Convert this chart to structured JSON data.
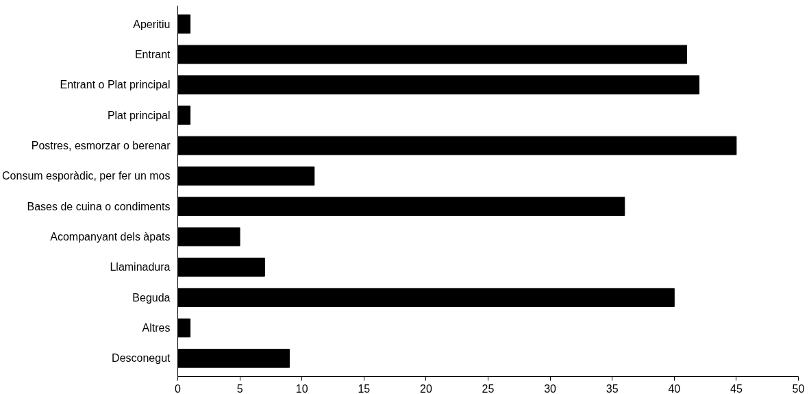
{
  "chart_data": {
    "type": "bar",
    "orientation": "horizontal",
    "categories": [
      "Aperitiu",
      "Entrant",
      "Entrant o Plat principal",
      "Plat principal",
      "Postres, esmorzar o berenar",
      "Consum esporàdic, per fer un mos",
      "Bases de cuina o condiments",
      "Acompanyant dels àpats",
      "Llaminadura",
      "Beguda",
      "Altres",
      "Desconegut"
    ],
    "values": [
      1,
      41,
      42,
      1,
      45,
      11,
      36,
      5,
      7,
      40,
      1,
      9
    ],
    "color": "#000000",
    "xlim": [
      0,
      50
    ],
    "xticks": [
      0,
      5,
      10,
      15,
      20,
      25,
      30,
      35,
      40,
      45,
      50
    ],
    "grid": false
  }
}
